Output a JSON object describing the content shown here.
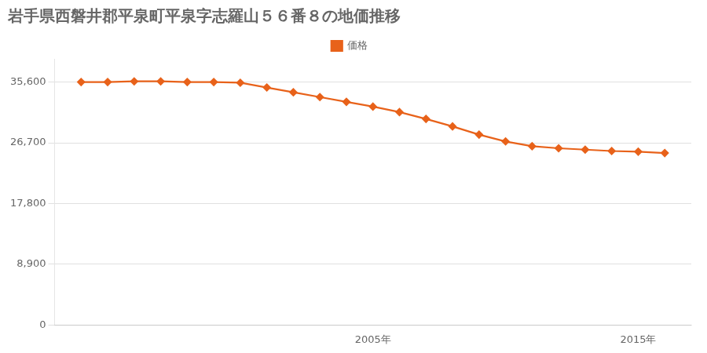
{
  "chart_data": {
    "type": "line",
    "title": "岩手県西磐井郡平泉町平泉字志羅山５６番８の地価推移",
    "x": [
      1994,
      1995,
      1996,
      1997,
      1998,
      1999,
      2000,
      2001,
      2002,
      2003,
      2004,
      2005,
      2006,
      2007,
      2008,
      2009,
      2010,
      2011,
      2012,
      2013,
      2014,
      2015,
      2016
    ],
    "series": [
      {
        "name": "価格",
        "color": "#E8621A",
        "values": [
          35600,
          35600,
          35700,
          35700,
          35600,
          35600,
          35500,
          34800,
          34100,
          33400,
          32700,
          32000,
          31200,
          30200,
          29100,
          27900,
          26900,
          26200,
          25900,
          25700,
          25500,
          25400,
          25200
        ]
      }
    ],
    "marker": "diamond",
    "xlim": [
      1993,
      2017
    ],
    "xticks": [
      {
        "value": 2005,
        "label": "2005年"
      },
      {
        "value": 2015,
        "label": "2015年"
      }
    ],
    "ylim": [
      0,
      39000
    ],
    "yticks": [
      0,
      {
        "value": 8900,
        "label": "8,900"
      },
      {
        "value": 17800,
        "label": "17,800"
      },
      {
        "value": 26700,
        "label": "26,700"
      },
      {
        "value": 35600,
        "label": "35,600"
      }
    ],
    "grid": "y",
    "legend": "top"
  }
}
